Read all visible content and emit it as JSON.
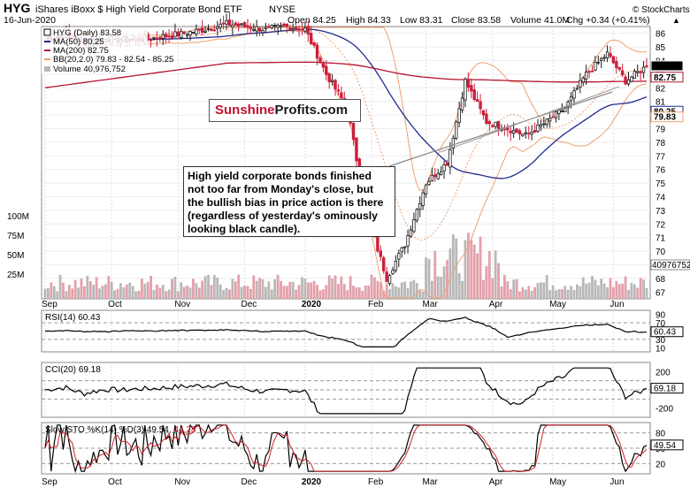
{
  "header": {
    "ticker": "HYG",
    "name": "iShares iBoxx $ High Yield Corporate Bond ETF",
    "exchange": "NYSE",
    "date": "16-Jun-2020",
    "open": "Open 84.25",
    "high": "High 84.33",
    "low": "Low 83.31",
    "close": "Close 83.58",
    "volume": "Volume 41.0M",
    "chg": "Chg +0.34 (+0.41%)",
    "chg_arrow": "▲",
    "credit": "© StockCharts.com"
  },
  "legend": {
    "hyg": "HYG (Daily) 83.58",
    "ma50": "MA(50) 80.25",
    "ma200": "MA(200) 82.75",
    "bb": "BB(20,2.0) 79.83 - 82.54 - 85.25",
    "volume": "Volume 40,976,752"
  },
  "callout": {
    "text": "High yield corporate bonds finished not too far from Monday's close, but the bullish bias in price action is there (regardless of yesterday's ominously looking black candle)."
  },
  "logo": {
    "part1": "Sunshine",
    "part2": "Profits.com"
  },
  "colors": {
    "up": "#1a1a1a",
    "down": "#cc1f3a",
    "ma50": "#1f2a8f",
    "ma200": "#b5122f",
    "bb": "#f0a070",
    "vol_up": "#b8b8b8",
    "vol_down": "#e3a0aa",
    "osc_pos": "#4a7a4a",
    "osc_neg": "#8a3a4a"
  },
  "chart_data": [
    {
      "type": "candlestick",
      "title": "HYG (Daily) 83.58",
      "x_labels": [
        "Sep",
        "Oct",
        "Nov",
        "Dec",
        "2020",
        "Feb",
        "Mar",
        "Apr",
        "May",
        "Jun"
      ],
      "y_ticks": [
        67,
        68,
        69,
        70,
        71,
        72,
        73,
        74,
        75,
        76,
        77,
        78,
        79,
        80,
        81,
        82,
        83,
        84,
        85,
        86
      ],
      "ylim": [
        66.5,
        86.5
      ],
      "volume_ticks": [
        "100M",
        "75M",
        "50M",
        "25M"
      ],
      "price_tags": {
        "close": "83.58",
        "ma200": "82.75",
        "ma50": "80.25",
        "bb_low": "79.83",
        "volume": "40976752"
      },
      "close_series": [
        {
          "d": "Sep",
          "v": 85.6
        },
        {
          "d": "Sep",
          "v": 85.9
        },
        {
          "d": "Oct",
          "v": 85.3
        },
        {
          "d": "Oct",
          "v": 85.6
        },
        {
          "d": "Oct",
          "v": 85.5
        },
        {
          "d": "Nov",
          "v": 85.6
        },
        {
          "d": "Nov",
          "v": 85.8
        },
        {
          "d": "Dec",
          "v": 86.0
        },
        {
          "d": "Dec",
          "v": 86.3
        },
        {
          "d": "2020",
          "v": 86.7
        },
        {
          "d": "2020",
          "v": 86.5
        },
        {
          "d": "Feb",
          "v": 86.3
        },
        {
          "d": "Feb",
          "v": 86.5
        },
        {
          "d": "Feb",
          "v": 86.3
        },
        {
          "d": "Mar",
          "v": 83.0
        },
        {
          "d": "Mar",
          "v": 80.5
        },
        {
          "d": "Mar",
          "v": 73.0
        },
        {
          "d": "Mar",
          "v": 68.0
        },
        {
          "d": "Mar",
          "v": 70.5
        },
        {
          "d": "Apr",
          "v": 75.0
        },
        {
          "d": "Apr",
          "v": 76.5
        },
        {
          "d": "Apr",
          "v": 82.5
        },
        {
          "d": "Apr",
          "v": 79.5
        },
        {
          "d": "May",
          "v": 79.0
        },
        {
          "d": "May",
          "v": 78.5
        },
        {
          "d": "May",
          "v": 79.5
        },
        {
          "d": "May",
          "v": 80.5
        },
        {
          "d": "Jun",
          "v": 83.0
        },
        {
          "d": "Jun",
          "v": 84.5
        },
        {
          "d": "Jun",
          "v": 82.5
        },
        {
          "d": "Jun",
          "v": 83.58
        }
      ]
    },
    {
      "type": "line",
      "title": "RSI(14) 60.43",
      "x_labels": [
        "Sep",
        "Oct",
        "Nov",
        "Dec",
        "2020",
        "Feb",
        "Mar",
        "Apr",
        "May",
        "Jun"
      ],
      "y_ticks": [
        90,
        70,
        50,
        30,
        10
      ],
      "value_tag": "60.43"
    },
    {
      "type": "line",
      "title": "CCI(20) 69.18",
      "x_labels": [
        "Sep",
        "Oct",
        "Nov",
        "Dec",
        "2020",
        "Feb",
        "Mar",
        "Apr",
        "May",
        "Jun"
      ],
      "y_ticks": [
        200,
        0,
        -200
      ],
      "value_tag": "69.18"
    },
    {
      "type": "line",
      "title": "Slow STO %K(14) %D(3) 49.54, 44.28",
      "title_main": "Slow STO %K(14) %D(3) 49.54,",
      "title_d": "44.28",
      "x_labels": [
        "Sep",
        "Oct",
        "Nov",
        "Dec",
        "2020",
        "Feb",
        "Mar",
        "Apr",
        "May",
        "Jun"
      ],
      "y_ticks": [
        80,
        50,
        20
      ],
      "value_tag": "49.54"
    }
  ]
}
